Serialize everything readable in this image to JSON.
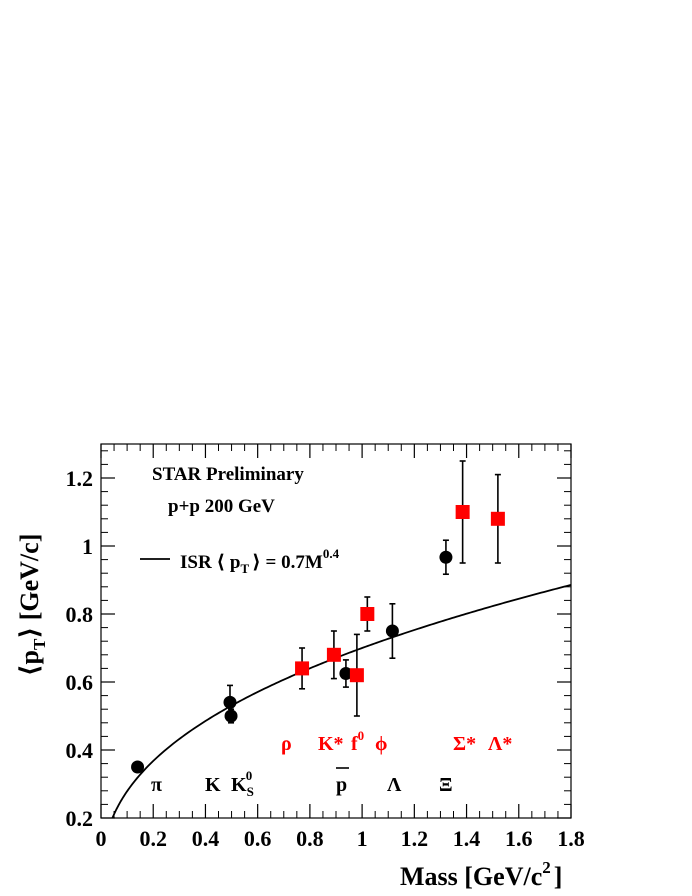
{
  "chart_data": {
    "type": "scatter",
    "title": "",
    "annotation_lines": [
      "STAR Preliminary",
      "p+p 200 GeV"
    ],
    "xlabel": {
      "main": "Mass [GeV/c",
      "sup": "2",
      "close": "]"
    },
    "ylabel": {
      "langle": "⟨",
      "p": "p",
      "sub": "T",
      "rangle": "⟩",
      "unit": " [GeV/c]"
    },
    "xlim": [
      0,
      1.8
    ],
    "ylim": [
      0.2,
      1.3
    ],
    "x_ticks": [
      0,
      0.2,
      0.4,
      0.6,
      0.8,
      1,
      1.2,
      1.4,
      1.6,
      1.8
    ],
    "x_tick_labels": [
      "0",
      "0.2",
      "0.4",
      "0.6",
      "0.8",
      "1",
      "1.2",
      "1.4",
      "1.6",
      "1.8"
    ],
    "y_ticks": [
      0.2,
      0.4,
      0.6,
      0.8,
      1,
      1.2
    ],
    "y_tick_labels": [
      "0.2",
      "0.4",
      "0.6",
      "0.8",
      "1",
      "1.2"
    ],
    "grid": false,
    "legend": {
      "placement": "top-left",
      "label": {
        "pre": "ISR ⟨ p",
        "sub": "T",
        "mid": "⟩ = 0.7M",
        "sup": "0.4"
      }
    },
    "curve": {
      "coefficient": 0.7,
      "exponent": 0.4,
      "x_start": 0.05,
      "x_end": 1.8
    },
    "series": [
      {
        "marker": "circle",
        "color": "#000000",
        "points": [
          {
            "x": 0.14,
            "y": 0.35,
            "err": 0.0
          },
          {
            "x": 0.494,
            "y": 0.54,
            "err": 0.05
          },
          {
            "x": 0.498,
            "y": 0.5,
            "err": 0.02
          },
          {
            "x": 0.938,
            "y": 0.625,
            "err": 0.04
          },
          {
            "x": 1.116,
            "y": 0.75,
            "err": 0.08
          },
          {
            "x": 1.321,
            "y": 0.967,
            "err": 0.05
          }
        ]
      },
      {
        "marker": "square",
        "color": "#ff0000",
        "points": [
          {
            "x": 0.77,
            "y": 0.64,
            "err": 0.06
          },
          {
            "x": 0.892,
            "y": 0.68,
            "err": 0.07
          },
          {
            "x": 0.98,
            "y": 0.62,
            "err": 0.12
          },
          {
            "x": 1.02,
            "y": 0.8,
            "err": 0.05
          },
          {
            "x": 1.385,
            "y": 1.1,
            "err": 0.15
          },
          {
            "x": 1.52,
            "y": 1.08,
            "err": 0.13
          }
        ]
      }
    ],
    "particle_labels_red": [
      "ρ",
      "K*",
      "f",
      "0",
      "ϕ",
      "Σ*",
      "Λ*"
    ],
    "particle_labels_black": [
      "π",
      "K",
      "K",
      "S",
      "0",
      "p",
      "Λ",
      "Ξ"
    ],
    "colors": {
      "resonance": "#ff0000",
      "stable": "#000000"
    }
  }
}
